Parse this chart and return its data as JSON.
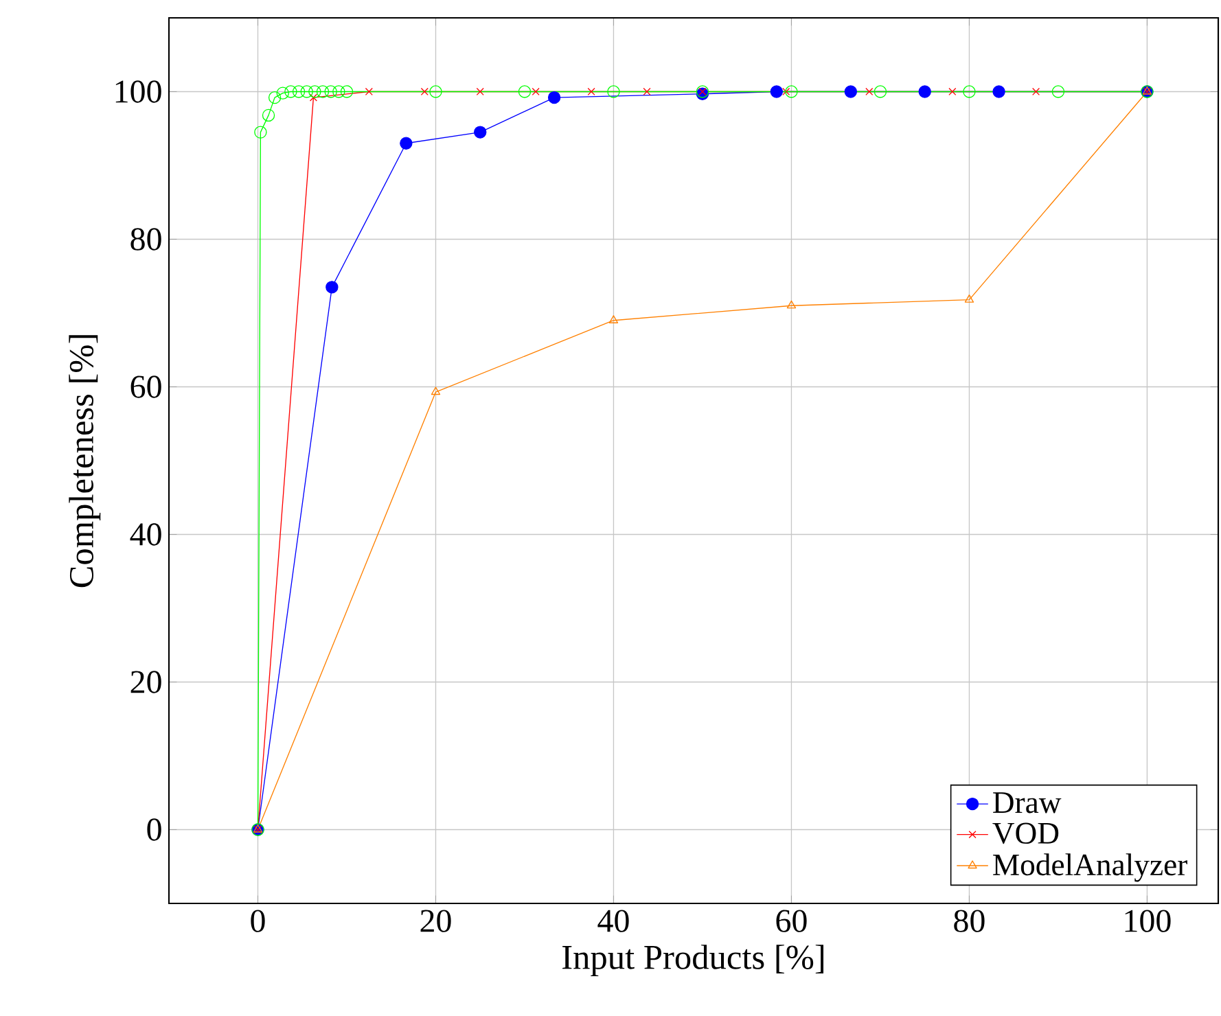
{
  "chart_data": {
    "type": "line",
    "xlabel": "Input Products [%]",
    "ylabel": "Completeness [%]",
    "xlim": [
      -10,
      108
    ],
    "ylim": [
      -10,
      110
    ],
    "xticks": [
      0,
      20,
      40,
      60,
      80,
      100
    ],
    "yticks": [
      0,
      20,
      40,
      60,
      80,
      100
    ],
    "grid": true,
    "legend": "bottom right",
    "series": [
      {
        "name": "Draw",
        "color": "#0000ff",
        "marker": "circle",
        "x": [
          0,
          8.33,
          16.67,
          25,
          33.33,
          50,
          58.33,
          66.67,
          75,
          83.33,
          100
        ],
        "values": [
          0,
          73.5,
          93,
          94.5,
          99.2,
          99.7,
          100,
          100,
          100,
          100,
          100
        ]
      },
      {
        "name": "VOD",
        "color": "#ff0000",
        "marker": "cross",
        "x": [
          0,
          6.25,
          12.5,
          18.75,
          25,
          31.25,
          37.5,
          43.75,
          50,
          59.4,
          68.75,
          78.1,
          87.5,
          100
        ],
        "values": [
          0,
          99.2,
          100,
          100,
          100,
          100,
          100,
          100,
          100,
          100,
          100,
          100,
          100,
          100
        ]
      },
      {
        "color": "#00ff00",
        "marker": "circle",
        "x": [
          0,
          0.3,
          1.2,
          1.9,
          2.8,
          3.7,
          4.6,
          5.5,
          6.4,
          7.3,
          8.2,
          9.1,
          10,
          20,
          30,
          40,
          50,
          60,
          70,
          80,
          90,
          100
        ],
        "values": [
          0,
          94.5,
          96.8,
          99.2,
          99.8,
          100,
          100,
          100,
          100,
          100,
          100,
          100,
          100,
          100,
          100,
          100,
          100,
          100,
          100,
          100,
          100,
          100
        ]
      },
      {
        "name": "ModelAnalyzer",
        "color": "#ff8000",
        "marker": "triangle",
        "x": [
          0,
          20,
          40,
          60,
          80,
          100
        ],
        "values": [
          0,
          59.3,
          69,
          71,
          71.8,
          100
        ]
      }
    ]
  }
}
